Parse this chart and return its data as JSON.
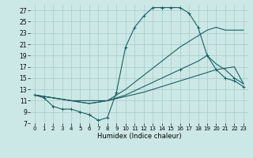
{
  "bg_color": "#cce8e6",
  "grid_color": "#aacece",
  "line_color": "#1a6060",
  "xlabel": "Humidex (Indice chaleur)",
  "xlim": [
    -0.5,
    23.5
  ],
  "ylim": [
    7,
    28
  ],
  "xticks": [
    0,
    1,
    2,
    3,
    4,
    5,
    6,
    7,
    8,
    9,
    10,
    11,
    12,
    13,
    14,
    15,
    16,
    17,
    18,
    19,
    20,
    21,
    22,
    23
  ],
  "yticks": [
    7,
    9,
    11,
    13,
    15,
    17,
    19,
    21,
    23,
    25,
    27
  ],
  "curve1_x": [
    0,
    1,
    2,
    3,
    4,
    5,
    6,
    6,
    7,
    7,
    8,
    9,
    10,
    11,
    12,
    13,
    14,
    14,
    15,
    16,
    17,
    18,
    19,
    20,
    21,
    22,
    23
  ],
  "curve1_y": [
    12.0,
    11.5,
    10.0,
    9.5,
    9.5,
    9.0,
    8.5,
    8.5,
    7.5,
    7.5,
    8.0,
    12.5,
    20.5,
    24.0,
    26.0,
    27.5,
    27.5,
    27.5,
    27.5,
    27.5,
    26.5,
    24.0,
    19.0,
    16.5,
    15.0,
    14.5,
    13.5
  ],
  "curve2_x": [
    0,
    2,
    4,
    6,
    8,
    10,
    12,
    14,
    16,
    17,
    18,
    19,
    20,
    21,
    22,
    23
  ],
  "curve2_y": [
    12.0,
    11.5,
    11.0,
    10.5,
    11.0,
    13.0,
    15.5,
    18.0,
    20.5,
    21.5,
    22.5,
    23.5,
    24.0,
    23.5,
    23.5,
    23.5
  ],
  "curve3_x": [
    0,
    2,
    4,
    6,
    8,
    10,
    12,
    14,
    16,
    18,
    19,
    20,
    21,
    22,
    23
  ],
  "curve3_y": [
    12.0,
    11.5,
    11.0,
    10.5,
    11.0,
    12.0,
    13.5,
    15.0,
    16.5,
    18.0,
    19.0,
    17.5,
    16.5,
    15.0,
    14.0
  ],
  "curve4_x": [
    0,
    4,
    8,
    12,
    16,
    20,
    22,
    23
  ],
  "curve4_y": [
    12.0,
    11.0,
    11.0,
    12.5,
    14.5,
    16.5,
    17.0,
    14.0
  ]
}
